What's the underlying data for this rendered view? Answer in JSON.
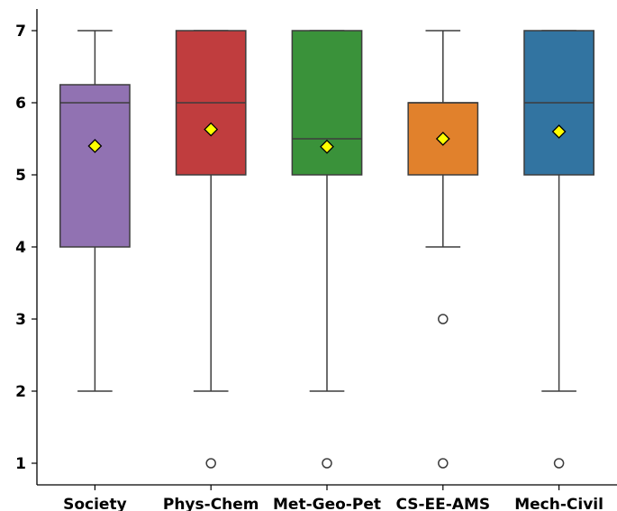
{
  "chart_data": {
    "type": "box",
    "title": "",
    "xlabel": "",
    "ylabel": "",
    "ylim": [
      0.7,
      7.3
    ],
    "yticks": [
      1,
      2,
      3,
      4,
      5,
      6,
      7
    ],
    "categories": [
      "Society",
      "Phys-Chem",
      "Met-Geo-Pet",
      "CS-EE-AMS",
      "Mech-Civil"
    ],
    "boxes": [
      {
        "category": "Society",
        "color": "#9172b2",
        "whisker_low": 2,
        "q1": 4,
        "median": 6,
        "q3": 6.25,
        "whisker_high": 7,
        "mean": 5.4,
        "outliers": []
      },
      {
        "category": "Phys-Chem",
        "color": "#c03d3e",
        "whisker_low": 2,
        "q1": 5,
        "median": 6,
        "q3": 7,
        "whisker_high": 7,
        "mean": 5.63,
        "outliers": [
          1
        ]
      },
      {
        "category": "Met-Geo-Pet",
        "color": "#3a923a",
        "whisker_low": 2,
        "q1": 5,
        "median": 5.5,
        "q3": 7,
        "whisker_high": 7,
        "mean": 5.39,
        "outliers": [
          1
        ]
      },
      {
        "category": "CS-EE-AMS",
        "color": "#e1812c",
        "whisker_low": 4,
        "q1": 5,
        "median": 6,
        "q3": 6,
        "whisker_high": 7,
        "mean": 5.5,
        "outliers": [
          3,
          1
        ]
      },
      {
        "category": "Mech-Civil",
        "color": "#3274a1",
        "whisker_low": 2,
        "q1": 5,
        "median": 6,
        "q3": 7,
        "whisker_high": 7,
        "mean": 5.6,
        "outliers": [
          1
        ]
      }
    ],
    "mean_marker": {
      "shape": "diamond",
      "fill": "#ffff00",
      "stroke": "#000000"
    },
    "grid": false,
    "legend": "none"
  }
}
